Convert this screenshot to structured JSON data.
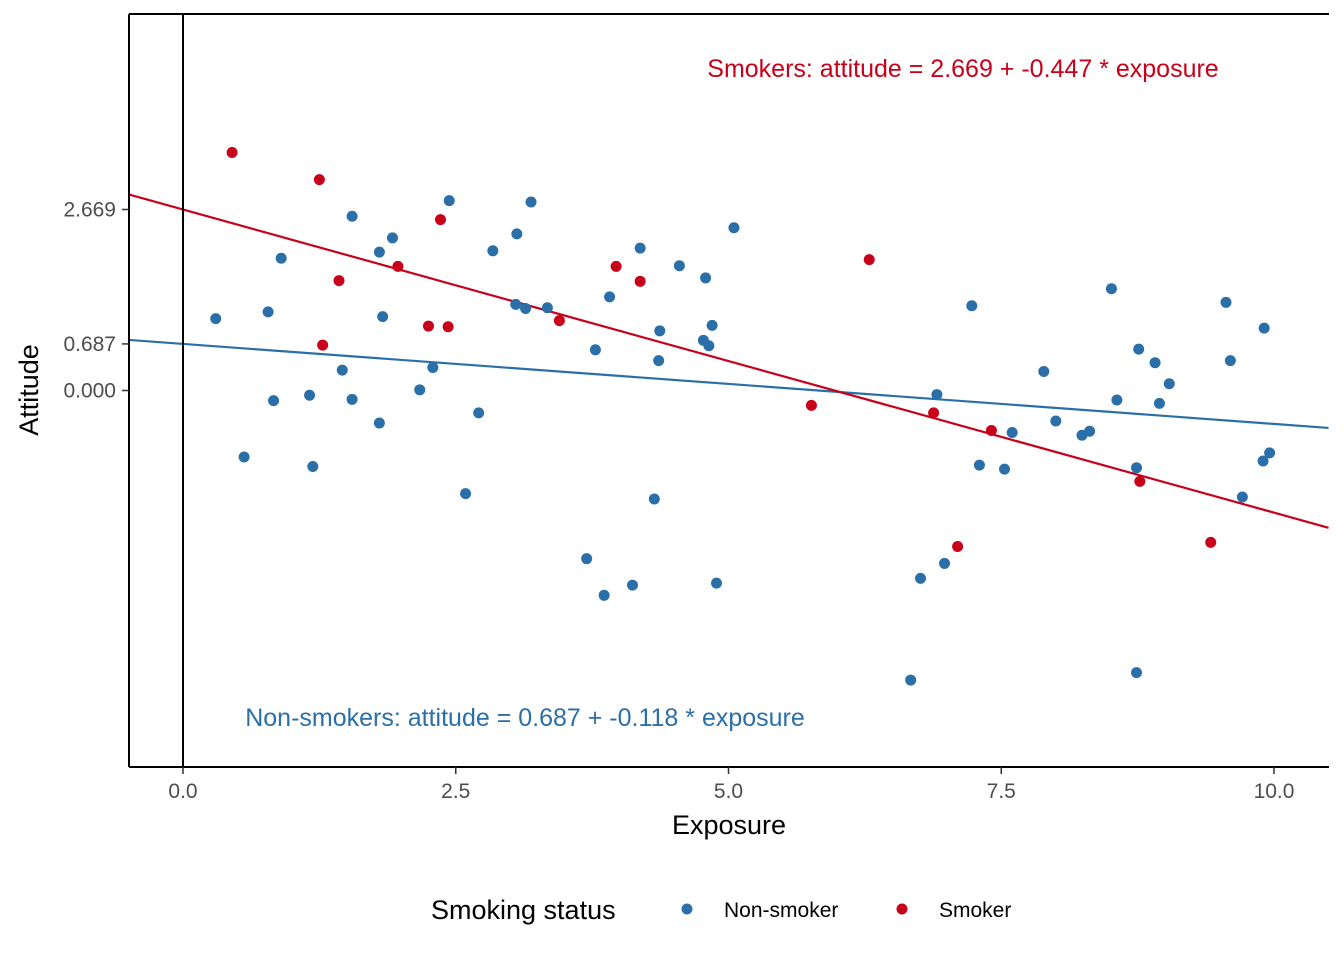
{
  "chart_data": {
    "type": "scatter",
    "xlabel": "Exposure",
    "ylabel": "Attitude",
    "xlim": [
      -0.5,
      10.5
    ],
    "ylim": [
      -5.4,
      5.4
    ],
    "x_ticks": [
      0.0,
      2.5,
      5.0,
      7.5,
      10.0
    ],
    "x_tick_labels": [
      "0.0",
      "2.5",
      "5.0",
      "7.5",
      "10.0"
    ],
    "y_ticks": [
      0.0,
      0.687,
      2.669
    ],
    "y_tick_labels": [
      "0.000",
      "0.687",
      "2.669"
    ],
    "vertical_reference_line_x": 0,
    "grid": false,
    "legend": {
      "title": "Smoking status",
      "position": "bottom",
      "entries": [
        "Non-smoker",
        "Smoker"
      ]
    },
    "colors": {
      "non_smoker": "#2b6fa8",
      "smoker": "#c8001a"
    },
    "series": [
      {
        "name": "Non-smoker",
        "color": "#2b6fa8",
        "fit": {
          "intercept": 0.687,
          "slope": -0.118
        },
        "annotation": "Non-smokers: attitude = 0.687 + -0.118 * exposure",
        "points": [
          [
            0.3,
            1.06
          ],
          [
            0.56,
            -0.98
          ],
          [
            0.78,
            1.16
          ],
          [
            0.83,
            -0.15
          ],
          [
            0.9,
            1.95
          ],
          [
            1.16,
            -0.07
          ],
          [
            1.19,
            -1.12
          ],
          [
            1.46,
            0.3
          ],
          [
            1.55,
            -0.13
          ],
          [
            1.55,
            2.57
          ],
          [
            1.8,
            2.04
          ],
          [
            1.8,
            -0.48
          ],
          [
            1.83,
            1.09
          ],
          [
            1.92,
            2.25
          ],
          [
            2.17,
            0.01
          ],
          [
            2.29,
            0.34
          ],
          [
            2.44,
            2.8
          ],
          [
            2.59,
            -1.52
          ],
          [
            2.71,
            -0.33
          ],
          [
            2.84,
            2.06
          ],
          [
            3.05,
            1.27
          ],
          [
            3.06,
            2.31
          ],
          [
            3.14,
            1.21
          ],
          [
            3.19,
            2.78
          ],
          [
            3.34,
            1.22
          ],
          [
            3.7,
            -2.48
          ],
          [
            3.78,
            0.6
          ],
          [
            3.86,
            -3.02
          ],
          [
            3.91,
            1.38
          ],
          [
            4.12,
            -2.87
          ],
          [
            4.19,
            2.1
          ],
          [
            4.32,
            -1.6
          ],
          [
            4.36,
            0.44
          ],
          [
            4.37,
            0.88
          ],
          [
            4.55,
            1.84
          ],
          [
            4.77,
            0.74
          ],
          [
            4.79,
            1.66
          ],
          [
            4.82,
            0.66
          ],
          [
            4.85,
            0.96
          ],
          [
            4.89,
            -2.84
          ],
          [
            5.05,
            2.4
          ],
          [
            6.67,
            -4.27
          ],
          [
            6.76,
            -2.77
          ],
          [
            6.91,
            -0.06
          ],
          [
            6.98,
            -2.55
          ],
          [
            7.23,
            1.25
          ],
          [
            7.3,
            -1.1
          ],
          [
            7.53,
            -1.16
          ],
          [
            7.6,
            -0.62
          ],
          [
            7.89,
            0.28
          ],
          [
            8.0,
            -0.45
          ],
          [
            8.24,
            -0.66
          ],
          [
            8.31,
            -0.6
          ],
          [
            8.51,
            1.5
          ],
          [
            8.56,
            -0.14
          ],
          [
            8.74,
            -4.16
          ],
          [
            8.74,
            -1.14
          ],
          [
            8.76,
            0.61
          ],
          [
            8.91,
            0.41
          ],
          [
            8.95,
            -0.19
          ],
          [
            9.04,
            0.1
          ],
          [
            9.56,
            1.3
          ],
          [
            9.6,
            0.44
          ],
          [
            9.71,
            -1.57
          ],
          [
            9.9,
            -1.04
          ],
          [
            9.91,
            0.92
          ],
          [
            9.96,
            -0.92
          ]
        ]
      },
      {
        "name": "Smoker",
        "color": "#c8001a",
        "fit": {
          "intercept": 2.669,
          "slope": -0.447
        },
        "annotation": "Smokers: attitude = 2.669 + -0.447 * exposure",
        "points": [
          [
            0.45,
            3.51
          ],
          [
            1.25,
            3.11
          ],
          [
            1.28,
            0.67
          ],
          [
            1.43,
            1.62
          ],
          [
            1.97,
            1.83
          ],
          [
            2.25,
            0.95
          ],
          [
            2.36,
            2.52
          ],
          [
            2.43,
            0.94
          ],
          [
            3.45,
            1.03
          ],
          [
            3.97,
            1.83
          ],
          [
            4.19,
            1.61
          ],
          [
            5.76,
            -0.22
          ],
          [
            6.29,
            1.93
          ],
          [
            6.88,
            -0.33
          ],
          [
            7.1,
            -2.3
          ],
          [
            7.41,
            -0.59
          ],
          [
            8.77,
            -1.34
          ],
          [
            9.42,
            -2.24
          ]
        ]
      }
    ]
  }
}
